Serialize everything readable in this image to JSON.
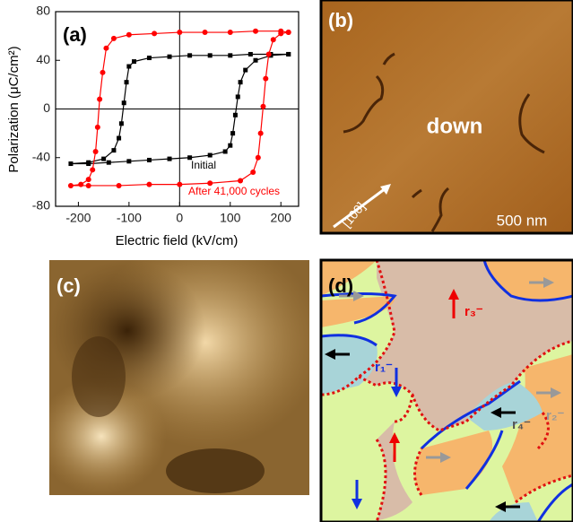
{
  "chart_data": {
    "type": "line",
    "panel_label": "(a)",
    "x_label": "Electric field (kV/cm)",
    "y_label": "Polarization (μC/cm²)",
    "xlim": [
      -245,
      235
    ],
    "ylim": [
      -80,
      80
    ],
    "xticks": [
      -200,
      -100,
      0,
      100,
      200
    ],
    "yticks": [
      -80,
      -40,
      0,
      40,
      80
    ],
    "series": [
      {
        "name": "Initial",
        "color": "#000000",
        "marker": "square",
        "x": [
          215,
          180,
          140,
          100,
          60,
          20,
          -20,
          -60,
          -90,
          -100,
          -105,
          -110,
          -115,
          -120,
          -130,
          -150,
          -180,
          -215,
          -180,
          -140,
          -100,
          -60,
          -20,
          20,
          60,
          90,
          100,
          105,
          110,
          115,
          120,
          130,
          150,
          180,
          215
        ],
        "values": [
          45,
          45,
          45,
          44,
          44,
          44,
          43,
          42,
          39,
          35,
          22,
          5,
          -12,
          -24,
          -34,
          -41,
          -44,
          -45,
          -45,
          -44,
          -43,
          -42,
          -41,
          -40,
          -38,
          -35,
          -30,
          -20,
          -5,
          10,
          22,
          32,
          40,
          44,
          45
        ]
      },
      {
        "name": "After 41,000 cycles",
        "color": "#ff0000",
        "marker": "circle",
        "x": [
          215,
          200,
          150,
          100,
          50,
          0,
          -50,
          -100,
          -130,
          -145,
          -152,
          -158,
          -162,
          -166,
          -172,
          -180,
          -195,
          -215,
          -180,
          -120,
          -60,
          0,
          60,
          120,
          145,
          155,
          160,
          165,
          170,
          176,
          185,
          200,
          215
        ],
        "values": [
          63,
          64,
          64,
          63,
          63,
          63,
          62,
          61,
          58,
          50,
          30,
          8,
          -15,
          -35,
          -50,
          -58,
          -62,
          -63,
          -63,
          -63,
          -62,
          -62,
          -61,
          -59,
          -52,
          -40,
          -20,
          2,
          25,
          45,
          57,
          62,
          63
        ]
      }
    ]
  },
  "panel_b": {
    "label": "(b)",
    "domain_text": "down",
    "direction": "[100]",
    "scale_bar": "500 nm"
  },
  "panel_c": {
    "label": "(c)"
  },
  "panel_d": {
    "label": "(d)",
    "labels": [
      "r₃⁻",
      "r₁⁻",
      "r₂⁻",
      "r₄⁻"
    ]
  }
}
